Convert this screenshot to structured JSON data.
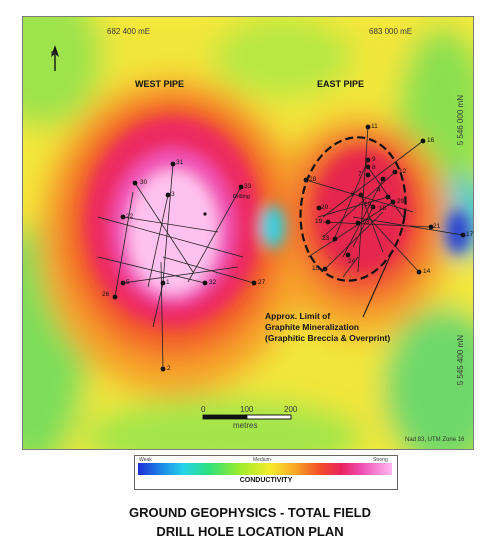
{
  "grid": {
    "easting_1": "682 400 mE",
    "easting_2": "683 000 mE",
    "northing_1": "5 546 000 mN",
    "northing_2": "5 545 400 mN"
  },
  "pipes": {
    "west": "WEST PIPE",
    "east": "EAST PIPE"
  },
  "annotation": {
    "line1": "Approx. Limit of",
    "line2": "Graphite Mineralization",
    "line3": "(Graphitic Breccia & Overprint)"
  },
  "drilling_label": "Drilling",
  "scale_bar": {
    "ticks": [
      "0",
      "100",
      "200"
    ],
    "unit": "metres"
  },
  "datum_note": "Nad 83, UTM Zone 16",
  "north_arrow": "N",
  "holes_west": [
    "31",
    "30",
    "3",
    "33",
    "22",
    "26",
    "5",
    "1",
    "32",
    "27",
    "2"
  ],
  "holes_east": [
    "11",
    "16",
    "9",
    "8",
    "7",
    "12",
    "4",
    "6",
    "10",
    "28",
    "29",
    "18",
    "20",
    "19",
    "23",
    "24",
    "13",
    "15",
    "21",
    "17",
    "14"
  ],
  "legend": {
    "weak": "Weak",
    "medium": "Medium",
    "strong": "Strong",
    "title": "CONDUCTIVITY"
  },
  "title": {
    "line1": "GROUND GEOPHYSICS - TOTAL FIELD",
    "line2": "DRILL HOLE LOCATION PLAN"
  }
}
